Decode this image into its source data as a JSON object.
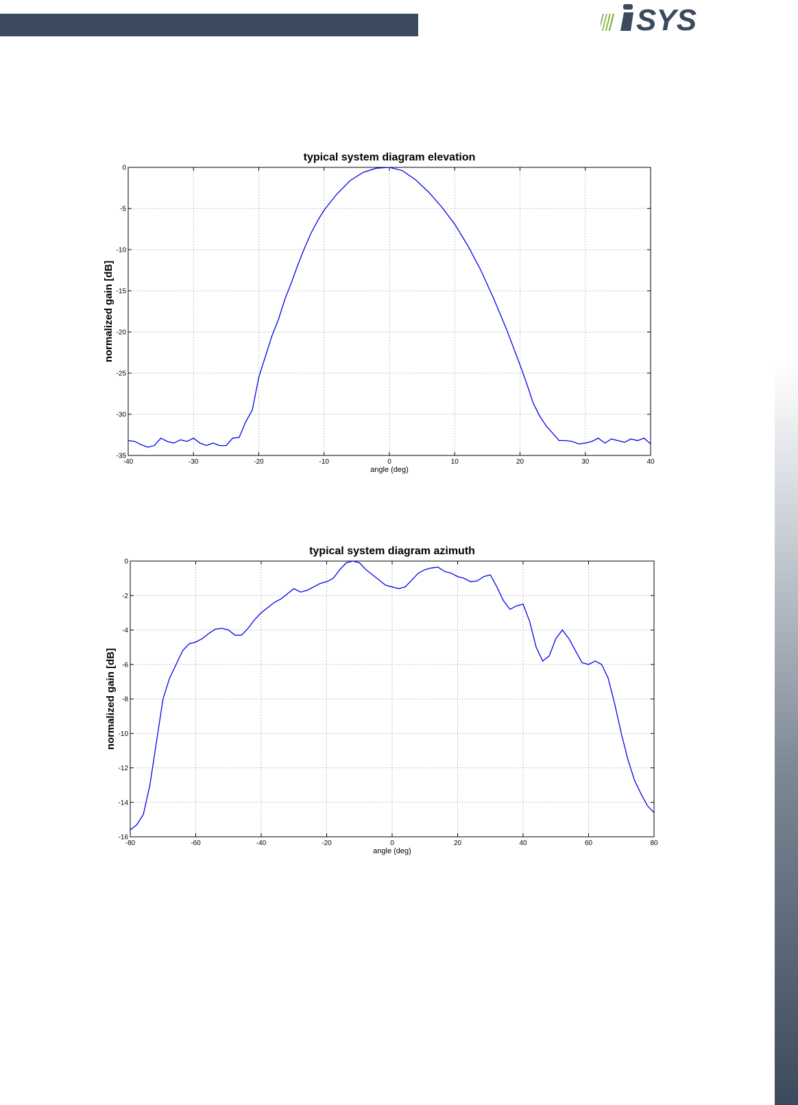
{
  "header": {
    "bar_color": "#3c4a5d",
    "logo_text": "SYS",
    "logo_color": "#3c4a5d",
    "logo_accent_color": "#8dc63f"
  },
  "chart_data": [
    {
      "type": "line",
      "title": "typical system diagram elevation",
      "xlabel": "angle (deg)",
      "ylabel": "normalized gain [dB]",
      "xlim": [
        -40,
        40
      ],
      "ylim": [
        -35,
        0
      ],
      "xticks": [
        -40,
        -30,
        -20,
        -10,
        0,
        10,
        20,
        30,
        40
      ],
      "yticks": [
        0,
        -5,
        -10,
        -15,
        -20,
        -25,
        -30,
        -35
      ],
      "grid": true,
      "series": [
        {
          "color": "#0000ee",
          "x": [
            -40,
            -39,
            -38,
            -37,
            -36,
            -35,
            -34,
            -33,
            -32,
            -31,
            -30,
            -29,
            -28,
            -27,
            -26,
            -25,
            -24,
            -23,
            -22,
            -21,
            -20,
            -19,
            -18,
            -17,
            -16,
            -15,
            -14,
            -13,
            -12,
            -11,
            -10,
            -8,
            -6,
            -4,
            -2,
            0,
            2,
            4,
            6,
            8,
            10,
            12,
            14,
            16,
            18,
            20,
            21,
            22,
            23,
            24,
            25,
            26,
            27,
            28,
            29,
            30,
            31,
            32,
            33,
            34,
            35,
            36,
            37,
            38,
            39,
            40
          ],
          "y": [
            -33.2,
            -33.3,
            -33.7,
            -34.0,
            -33.8,
            -32.9,
            -33.3,
            -33.5,
            -33.1,
            -33.3,
            -32.9,
            -33.5,
            -33.8,
            -33.5,
            -33.8,
            -33.8,
            -32.9,
            -32.8,
            -30.9,
            -29.5,
            -25.5,
            -23.0,
            -20.5,
            -18.5,
            -16.0,
            -14.0,
            -11.8,
            -9.8,
            -8.0,
            -6.5,
            -5.2,
            -3.2,
            -1.6,
            -0.6,
            -0.1,
            0.0,
            -0.4,
            -1.5,
            -3.0,
            -4.8,
            -6.9,
            -9.5,
            -12.5,
            -16.0,
            -19.8,
            -24.0,
            -26.2,
            -28.6,
            -30.2,
            -31.4,
            -32.3,
            -33.2,
            -33.2,
            -33.3,
            -33.6,
            -33.5,
            -33.3,
            -32.9,
            -33.5,
            -33.0,
            -33.2,
            -33.4,
            -33.0,
            -33.2,
            -32.9,
            -33.6
          ]
        }
      ]
    },
    {
      "type": "line",
      "title": "typical system diagram azimuth",
      "xlabel": "angle (deg)",
      "ylabel": "normalized gain [dB]",
      "xlim": [
        -80,
        80
      ],
      "ylim": [
        -16,
        0
      ],
      "xticks": [
        -80,
        -60,
        -40,
        -20,
        0,
        20,
        40,
        60,
        80
      ],
      "yticks": [
        0,
        -2,
        -4,
        -6,
        -8,
        -10,
        -12,
        -14,
        -16
      ],
      "grid": true,
      "series": [
        {
          "color": "#0000ee",
          "x": [
            -80,
            -78,
            -76,
            -74,
            -72,
            -70,
            -68,
            -66,
            -64,
            -62,
            -60,
            -58,
            -56,
            -54,
            -52,
            -50,
            -48,
            -46,
            -44,
            -42,
            -40,
            -38,
            -36,
            -34,
            -32,
            -30,
            -28,
            -26,
            -24,
            -22,
            -20,
            -18,
            -16,
            -14,
            -12,
            -10,
            -8,
            -6,
            -4,
            -2,
            0,
            2,
            4,
            6,
            8,
            10,
            12,
            14,
            16,
            18,
            20,
            22,
            24,
            26,
            28,
            30,
            32,
            34,
            36,
            38,
            40,
            42,
            44,
            46,
            48,
            50,
            52,
            54,
            56,
            58,
            60,
            62,
            64,
            66,
            68,
            70,
            72,
            74,
            76,
            78,
            80
          ],
          "y": [
            -15.6,
            -15.3,
            -14.7,
            -13.0,
            -10.5,
            -8.0,
            -6.8,
            -6.0,
            -5.2,
            -4.8,
            -4.7,
            -4.5,
            -4.2,
            -3.95,
            -3.9,
            -4.0,
            -4.3,
            -4.3,
            -3.9,
            -3.4,
            -3.0,
            -2.7,
            -2.4,
            -2.2,
            -1.9,
            -1.6,
            -1.8,
            -1.7,
            -1.5,
            -1.3,
            -1.2,
            -1.0,
            -0.5,
            -0.1,
            0.0,
            -0.1,
            -0.5,
            -0.8,
            -1.1,
            -1.4,
            -1.5,
            -1.6,
            -1.5,
            -1.1,
            -0.7,
            -0.5,
            -0.4,
            -0.35,
            -0.6,
            -0.7,
            -0.9,
            -1.0,
            -1.2,
            -1.15,
            -0.9,
            -0.8,
            -1.5,
            -2.3,
            -2.8,
            -2.6,
            -2.5,
            -3.5,
            -5.0,
            -5.8,
            -5.5,
            -4.5,
            -4.0,
            -4.5,
            -5.2,
            -5.9,
            -6.0,
            -5.8,
            -6.0,
            -6.8,
            -8.3,
            -10.0,
            -11.5,
            -12.7,
            -13.5,
            -14.2,
            -14.6
          ]
        }
      ]
    }
  ]
}
